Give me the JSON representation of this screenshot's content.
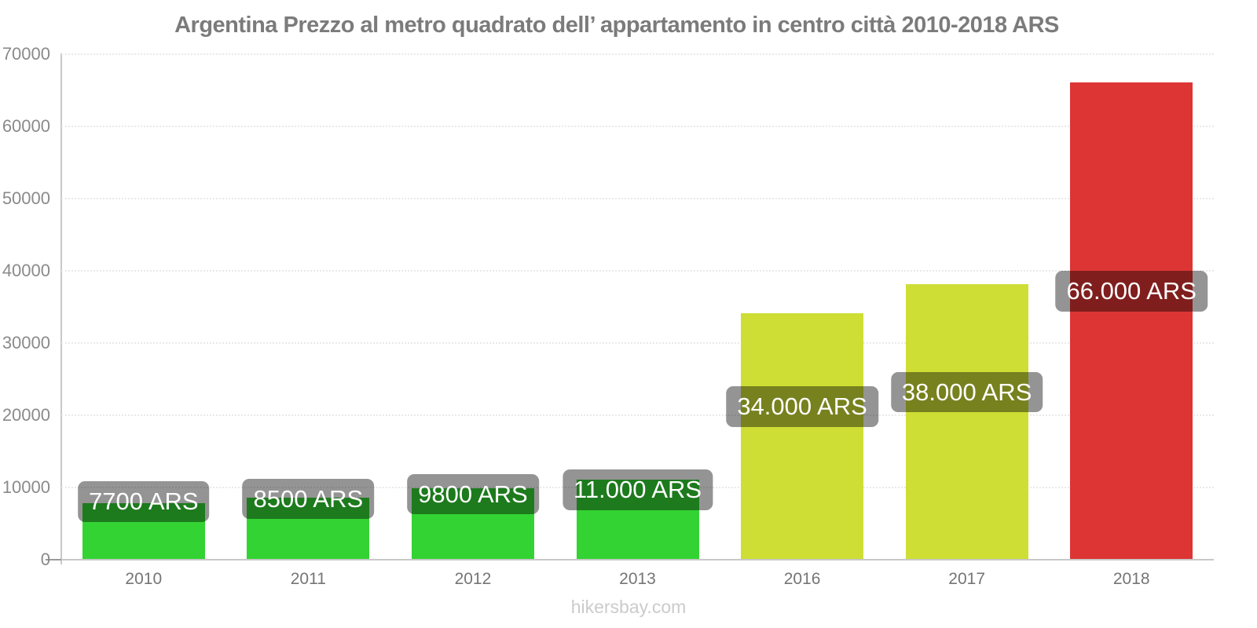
{
  "chart_data": {
    "type": "bar",
    "title": "Argentina Prezzo al metro quadrato dell’ appartamento in centro città 2010-2018 ARS",
    "categories": [
      "2010",
      "2011",
      "2012",
      "2013",
      "2016",
      "2017",
      "2018"
    ],
    "values": [
      7700,
      8500,
      9800,
      11000,
      34000,
      38000,
      66000
    ],
    "value_labels": [
      "7700 ARS",
      "8500 ARS",
      "9800 ARS",
      "11.000 ARS",
      "34.000 ARS",
      "38.000 ARS",
      "66.000 ARS"
    ],
    "bar_colors": [
      "#33d333",
      "#33d333",
      "#33d333",
      "#33d333",
      "#cede35",
      "#cede35",
      "#dc3534"
    ],
    "value_label_bg": "rgba(0,0,0,0.42)",
    "xlabel": "",
    "ylabel": "",
    "ylim": [
      0,
      70000
    ],
    "yticks": [
      0,
      10000,
      20000,
      30000,
      40000,
      50000,
      60000,
      70000
    ],
    "grid": "horizontal-dotted",
    "legend_position": "none"
  },
  "footer": {
    "watermark": "hikersbay.com"
  }
}
